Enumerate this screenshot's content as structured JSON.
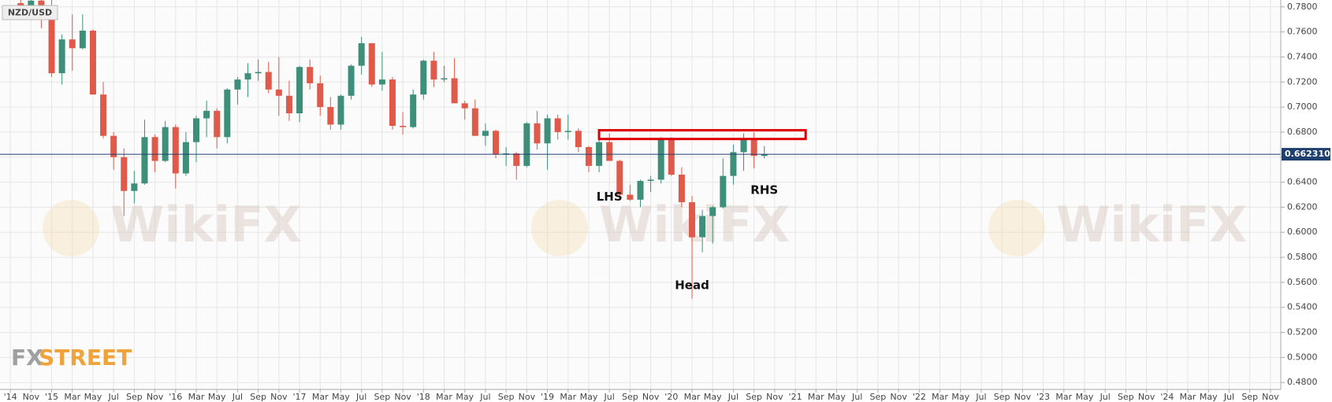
{
  "chart_data": {
    "type": "candlestick",
    "symbol": "NZD/USD",
    "up_color": "#3d8f7a",
    "down_color": "#df5a4a",
    "grid": true,
    "x": [
      "2014-10",
      "2014-11",
      "2014-12",
      "2015-01",
      "2015-02",
      "2015-03",
      "2015-04",
      "2015-05",
      "2015-06",
      "2015-07",
      "2015-08",
      "2015-09",
      "2015-10",
      "2015-11",
      "2015-12",
      "2016-01",
      "2016-02",
      "2016-03",
      "2016-04",
      "2016-05",
      "2016-06",
      "2016-07",
      "2016-08",
      "2016-09",
      "2016-10",
      "2016-11",
      "2016-12",
      "2017-01",
      "2017-02",
      "2017-03",
      "2017-04",
      "2017-05",
      "2017-06",
      "2017-07",
      "2017-08",
      "2017-09",
      "2017-10",
      "2017-11",
      "2017-12",
      "2018-01",
      "2018-02",
      "2018-03",
      "2018-04",
      "2018-05",
      "2018-06",
      "2018-07",
      "2018-08",
      "2018-09",
      "2018-10",
      "2018-11",
      "2018-12",
      "2019-01",
      "2019-02",
      "2019-03",
      "2019-04",
      "2019-05",
      "2019-06",
      "2019-07",
      "2019-08",
      "2019-09",
      "2019-10",
      "2019-11",
      "2019-12",
      "2020-01",
      "2020-02",
      "2020-03",
      "2020-04",
      "2020-05",
      "2020-06",
      "2020-07",
      "2020-08",
      "2020-09",
      "2020-10"
    ],
    "open": [
      0.783,
      0.78,
      0.785,
      0.78,
      0.727,
      0.754,
      0.747,
      0.761,
      0.71,
      0.677,
      0.66,
      0.633,
      0.639,
      0.676,
      0.657,
      0.684,
      0.647,
      0.672,
      0.691,
      0.697,
      0.676,
      0.714,
      0.722,
      0.727,
      0.728,
      0.714,
      0.709,
      0.695,
      0.732,
      0.719,
      0.7,
      0.686,
      0.709,
      0.733,
      0.751,
      0.718,
      0.722,
      0.685,
      0.684,
      0.71,
      0.737,
      0.722,
      0.723,
      0.703,
      0.699,
      0.677,
      0.681,
      0.662,
      0.663,
      0.653,
      0.687,
      0.671,
      0.691,
      0.68,
      0.681,
      0.668,
      0.653,
      0.672,
      0.657,
      0.63,
      0.626,
      0.641,
      0.642,
      0.674,
      0.646,
      0.624,
      0.596,
      0.613,
      0.62,
      0.645,
      0.664,
      0.674,
      0.661
    ],
    "high": [
      0.799,
      0.796,
      0.788,
      0.787,
      0.758,
      0.774,
      0.774,
      0.762,
      0.72,
      0.68,
      0.667,
      0.649,
      0.69,
      0.678,
      0.689,
      0.686,
      0.68,
      0.693,
      0.705,
      0.699,
      0.715,
      0.724,
      0.735,
      0.738,
      0.736,
      0.74,
      0.721,
      0.733,
      0.738,
      0.725,
      0.708,
      0.71,
      0.734,
      0.756,
      0.751,
      0.744,
      0.724,
      0.696,
      0.714,
      0.738,
      0.744,
      0.733,
      0.739,
      0.705,
      0.706,
      0.687,
      0.682,
      0.668,
      0.664,
      0.688,
      0.697,
      0.694,
      0.694,
      0.694,
      0.683,
      0.669,
      0.674,
      0.679,
      0.658,
      0.638,
      0.642,
      0.645,
      0.676,
      0.676,
      0.652,
      0.629,
      0.618,
      0.621,
      0.659,
      0.67,
      0.679,
      0.68,
      0.669
    ],
    "low": [
      0.77,
      0.77,
      0.763,
      0.724,
      0.718,
      0.729,
      0.746,
      0.71,
      0.675,
      0.65,
      0.613,
      0.623,
      0.638,
      0.648,
      0.656,
      0.635,
      0.645,
      0.656,
      0.676,
      0.667,
      0.671,
      0.702,
      0.708,
      0.721,
      0.711,
      0.693,
      0.689,
      0.688,
      0.714,
      0.693,
      0.682,
      0.682,
      0.706,
      0.726,
      0.716,
      0.713,
      0.682,
      0.678,
      0.683,
      0.706,
      0.716,
      0.72,
      0.703,
      0.69,
      0.677,
      0.669,
      0.659,
      0.653,
      0.642,
      0.652,
      0.666,
      0.65,
      0.674,
      0.674,
      0.664,
      0.648,
      0.648,
      0.657,
      0.627,
      0.625,
      0.62,
      0.632,
      0.639,
      0.645,
      0.62,
      0.5469,
      0.584,
      0.591,
      0.619,
      0.638,
      0.649,
      0.651,
      0.659
    ],
    "close": [
      0.78,
      0.785,
      0.78,
      0.727,
      0.754,
      0.747,
      0.761,
      0.71,
      0.677,
      0.66,
      0.633,
      0.639,
      0.676,
      0.657,
      0.684,
      0.647,
      0.672,
      0.691,
      0.697,
      0.676,
      0.714,
      0.722,
      0.727,
      0.728,
      0.714,
      0.709,
      0.695,
      0.732,
      0.719,
      0.7,
      0.686,
      0.709,
      0.733,
      0.751,
      0.718,
      0.722,
      0.685,
      0.684,
      0.71,
      0.737,
      0.722,
      0.723,
      0.703,
      0.699,
      0.677,
      0.681,
      0.662,
      0.663,
      0.653,
      0.687,
      0.671,
      0.691,
      0.68,
      0.681,
      0.668,
      0.653,
      0.672,
      0.657,
      0.63,
      0.626,
      0.641,
      0.642,
      0.674,
      0.646,
      0.624,
      0.596,
      0.613,
      0.62,
      0.645,
      0.664,
      0.674,
      0.661,
      0.6623
    ],
    "xlim": [
      "2014-08",
      "2024-12"
    ],
    "xticks": [
      {
        "value": "2014-09",
        "label": "'14"
      },
      {
        "value": "2014-11",
        "label": "Nov"
      },
      {
        "value": "2015-01",
        "label": "'15"
      },
      {
        "value": "2015-03",
        "label": "Mar"
      },
      {
        "value": "2015-05",
        "label": "May"
      },
      {
        "value": "2015-07",
        "label": "Jul"
      },
      {
        "value": "2015-09",
        "label": "Sep"
      },
      {
        "value": "2015-11",
        "label": "Nov"
      },
      {
        "value": "2016-01",
        "label": "'16"
      },
      {
        "value": "2016-03",
        "label": "Mar"
      },
      {
        "value": "2016-05",
        "label": "May"
      },
      {
        "value": "2016-07",
        "label": "Jul"
      },
      {
        "value": "2016-09",
        "label": "Sep"
      },
      {
        "value": "2016-11",
        "label": "Nov"
      },
      {
        "value": "2017-01",
        "label": "'17"
      },
      {
        "value": "2017-03",
        "label": "Mar"
      },
      {
        "value": "2017-05",
        "label": "May"
      },
      {
        "value": "2017-07",
        "label": "Jul"
      },
      {
        "value": "2017-09",
        "label": "Sep"
      },
      {
        "value": "2017-11",
        "label": "Nov"
      },
      {
        "value": "2018-01",
        "label": "'18"
      },
      {
        "value": "2018-03",
        "label": "Mar"
      },
      {
        "value": "2018-05",
        "label": "May"
      },
      {
        "value": "2018-07",
        "label": "Jul"
      },
      {
        "value": "2018-09",
        "label": "Sep"
      },
      {
        "value": "2018-11",
        "label": "Nov"
      },
      {
        "value": "2019-01",
        "label": "'19"
      },
      {
        "value": "2019-03",
        "label": "Mar"
      },
      {
        "value": "2019-05",
        "label": "May"
      },
      {
        "value": "2019-07",
        "label": "Jul"
      },
      {
        "value": "2019-09",
        "label": "Sep"
      },
      {
        "value": "2019-11",
        "label": "Nov"
      },
      {
        "value": "2020-01",
        "label": "'20"
      },
      {
        "value": "2020-03",
        "label": "Mar"
      },
      {
        "value": "2020-05",
        "label": "May"
      },
      {
        "value": "2020-07",
        "label": "Jul"
      },
      {
        "value": "2020-09",
        "label": "Sep"
      },
      {
        "value": "2020-11",
        "label": "Nov"
      },
      {
        "value": "2021-01",
        "label": "'21"
      },
      {
        "value": "2021-03",
        "label": "Mar"
      },
      {
        "value": "2021-05",
        "label": "May"
      },
      {
        "value": "2021-07",
        "label": "Jul"
      },
      {
        "value": "2021-09",
        "label": "Sep"
      },
      {
        "value": "2021-11",
        "label": "Nov"
      },
      {
        "value": "2022-01",
        "label": "'22"
      },
      {
        "value": "2022-03",
        "label": "Mar"
      },
      {
        "value": "2022-05",
        "label": "May"
      },
      {
        "value": "2022-07",
        "label": "Jul"
      },
      {
        "value": "2022-09",
        "label": "Sep"
      },
      {
        "value": "2022-11",
        "label": "Nov"
      },
      {
        "value": "2023-01",
        "label": "'23"
      },
      {
        "value": "2023-03",
        "label": "Mar"
      },
      {
        "value": "2023-05",
        "label": "May"
      },
      {
        "value": "2023-07",
        "label": "Jul"
      },
      {
        "value": "2023-09",
        "label": "Sep"
      },
      {
        "value": "2023-11",
        "label": "Nov"
      },
      {
        "value": "2024-01",
        "label": "'24"
      },
      {
        "value": "2024-03",
        "label": "Mar"
      },
      {
        "value": "2024-05",
        "label": "May"
      },
      {
        "value": "2024-07",
        "label": "Jul"
      },
      {
        "value": "2024-09",
        "label": "Sep"
      },
      {
        "value": "2024-11",
        "label": "Nov"
      }
    ],
    "ylim": [
      0.4745,
      0.7855
    ],
    "yticks": [
      {
        "value": 0.48,
        "label": "0.4800"
      },
      {
        "value": 0.5,
        "label": "0.5000"
      },
      {
        "value": 0.52,
        "label": "0.5200"
      },
      {
        "value": 0.54,
        "label": "0.5400"
      },
      {
        "value": 0.56,
        "label": "0.5600"
      },
      {
        "value": 0.58,
        "label": "0.5800"
      },
      {
        "value": 0.6,
        "label": "0.6000"
      },
      {
        "value": 0.62,
        "label": "0.6200"
      },
      {
        "value": 0.64,
        "label": "0.6400"
      },
      {
        "value": 0.66,
        "label": "0.6600"
      },
      {
        "value": 0.68,
        "label": "0.6800"
      },
      {
        "value": 0.7,
        "label": "0.7000"
      },
      {
        "value": 0.72,
        "label": "0.7200"
      },
      {
        "value": 0.74,
        "label": "0.7400"
      },
      {
        "value": 0.76,
        "label": "0.7600"
      },
      {
        "value": 0.78,
        "label": "0.7800"
      }
    ],
    "last_price": {
      "value": 0.66231,
      "label": "0.662310",
      "color": "#1f3f6f"
    },
    "zone": {
      "x": [
        "2019-06",
        "2021-02"
      ],
      "y": [
        0.6745,
        0.6815
      ],
      "color": "#e00000"
    },
    "annotations": [
      {
        "text": "LHS",
        "x": "2019-07",
        "y": 0.628
      },
      {
        "text": "Head",
        "x": "2020-03",
        "y": 0.5575
      },
      {
        "text": "RHS",
        "x": "2020-10",
        "y": 0.6335
      }
    ],
    "watermark": "WikiFX",
    "logo": [
      "FX",
      "STREET"
    ]
  }
}
